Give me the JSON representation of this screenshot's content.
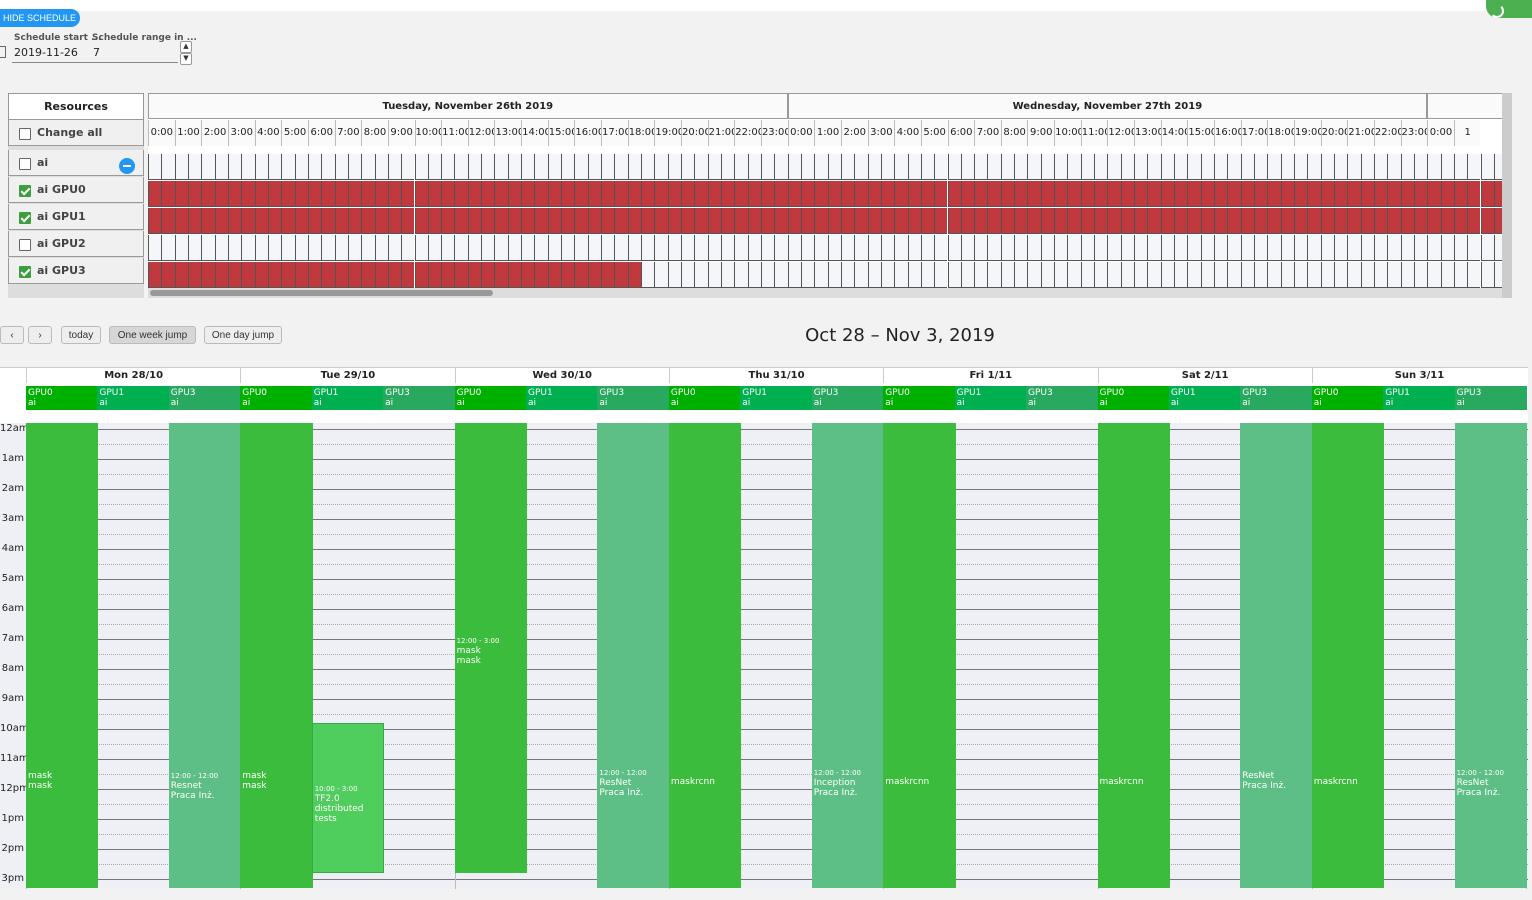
{
  "colors": {
    "gpu0": "#3cbc3c",
    "gpu1": "#4fcd5d",
    "gpu3": "#5dbf85",
    "chip0": "#00b000",
    "chip1": "#00b050",
    "chip3": "#29a860",
    "busy": "#c0393f",
    "accent": "#2196f3"
  },
  "header": {
    "hide_schedule_label": "HIDE SCHEDULE"
  },
  "controls": {
    "schedule_start_label": "Schedule start ...",
    "schedule_start_value": "2019-11-26",
    "schedule_range_label": "Schedule range in ...",
    "schedule_range_value": "7"
  },
  "resources": {
    "header": "Resources",
    "change_all_label": "Change all",
    "items": [
      {
        "label": "ai",
        "checked": false
      },
      {
        "label": "ai GPU0",
        "checked": true
      },
      {
        "label": "ai GPU1",
        "checked": true
      },
      {
        "label": "ai GPU2",
        "checked": false
      },
      {
        "label": "ai GPU3",
        "checked": true
      }
    ]
  },
  "timeline": {
    "days": [
      "Tuesday, November 26th 2019",
      "Wednesday, November 27th 2019"
    ],
    "hour_labels": [
      "0:00",
      "1:00",
      "2:00",
      "3:00",
      "4:00",
      "5:00",
      "6:00",
      "7:00",
      "8:00",
      "9:00",
      "10:00",
      "11:00",
      "12:00",
      "13:00",
      "14:00",
      "15:00",
      "16:00",
      "17:00",
      "18:00",
      "19:00",
      "20:00",
      "21:00",
      "22:00",
      "23:00",
      "0:00",
      "1:00",
      "2:00",
      "3:00",
      "4:00",
      "5:00",
      "6:00",
      "7:00",
      "8:00",
      "9:00",
      "10:00",
      "11:00",
      "12:00",
      "13:00",
      "14:00",
      "15:00",
      "16:00",
      "17:00",
      "18:00",
      "19:00",
      "20:00",
      "21:00",
      "22:00",
      "23:00",
      "0:00",
      "1"
    ],
    "busy_hours_per_row": [
      0,
      51,
      51,
      0,
      18.5
    ]
  },
  "calendar": {
    "nav": {
      "prev": "‹",
      "next": "›",
      "today": "today",
      "week_jump": "One week jump",
      "day_jump": "One day jump"
    },
    "title": "Oct 28 – Nov 3, 2019",
    "days": [
      "Mon 28/10",
      "Tue 29/10",
      "Wed 30/10",
      "Thu 31/10",
      "Fri 1/11",
      "Sat 2/11",
      "Sun 3/11"
    ],
    "resource_chips": [
      {
        "name": "GPU0",
        "owner": "ai"
      },
      {
        "name": "GPU1",
        "owner": "ai"
      },
      {
        "name": "GPU3",
        "owner": "ai"
      }
    ],
    "time_labels": [
      "12am",
      "1am",
      "2am",
      "3am",
      "4am",
      "5am",
      "6am",
      "7am",
      "8am",
      "9am",
      "10am",
      "11am",
      "12pm",
      "1pm",
      "2pm",
      "3pm"
    ],
    "events": [
      {
        "day": 0,
        "res": 0,
        "start": 0,
        "end": 15.5,
        "time": "",
        "title": "mask",
        "sub": "mask",
        "label_hour": 11.6
      },
      {
        "day": 0,
        "res": 2,
        "start": 0,
        "end": 15.5,
        "time": "12:00 - 12:00",
        "title": "Resnet",
        "sub": "Praca Inż.",
        "label_hour": 11.6
      },
      {
        "day": 1,
        "res": 0,
        "start": 0,
        "end": 15.5,
        "time": "",
        "title": "mask",
        "sub": "mask",
        "label_hour": 11.6
      },
      {
        "day": 1,
        "res": 1,
        "start": 10,
        "end": 15,
        "time": "10:00 - 3:00",
        "title": "TF2.0 distributed",
        "sub": "tests",
        "label_hour": 12
      },
      {
        "day": 2,
        "res": 0,
        "start": 0,
        "end": 15,
        "time": "12:00 - 3:00",
        "title": "mask",
        "sub": "mask",
        "label_hour": 7.1
      },
      {
        "day": 2,
        "res": 2,
        "start": 0,
        "end": 15.5,
        "time": "12:00 - 12:00",
        "title": "ResNet",
        "sub": "Praca Inż.",
        "label_hour": 11.5
      },
      {
        "day": 3,
        "res": 0,
        "start": 0,
        "end": 15.5,
        "time": "",
        "title": "maskrcnn",
        "sub": "",
        "label_hour": 11.8
      },
      {
        "day": 3,
        "res": 2,
        "start": 0,
        "end": 15.5,
        "time": "12:00 - 12:00",
        "title": "Inception",
        "sub": "Praca Inż.",
        "label_hour": 11.5
      },
      {
        "day": 4,
        "res": 0,
        "start": 0,
        "end": 15.5,
        "time": "",
        "title": "maskrcnn",
        "sub": "",
        "label_hour": 11.8
      },
      {
        "day": 5,
        "res": 0,
        "start": 0,
        "end": 15.5,
        "time": "",
        "title": "maskrcnn",
        "sub": "",
        "label_hour": 11.8
      },
      {
        "day": 5,
        "res": 2,
        "start": 0,
        "end": 15.5,
        "time": "",
        "title": "ResNet",
        "sub": "Praca Inż.",
        "label_hour": 11.6
      },
      {
        "day": 6,
        "res": 0,
        "start": 0,
        "end": 15.5,
        "time": "",
        "title": "maskrcnn",
        "sub": "",
        "label_hour": 11.8
      },
      {
        "day": 6,
        "res": 2,
        "start": 0,
        "end": 15.5,
        "time": "12:00 - 12:00",
        "title": "ResNet",
        "sub": "Praca Inż.",
        "label_hour": 11.5
      }
    ]
  }
}
